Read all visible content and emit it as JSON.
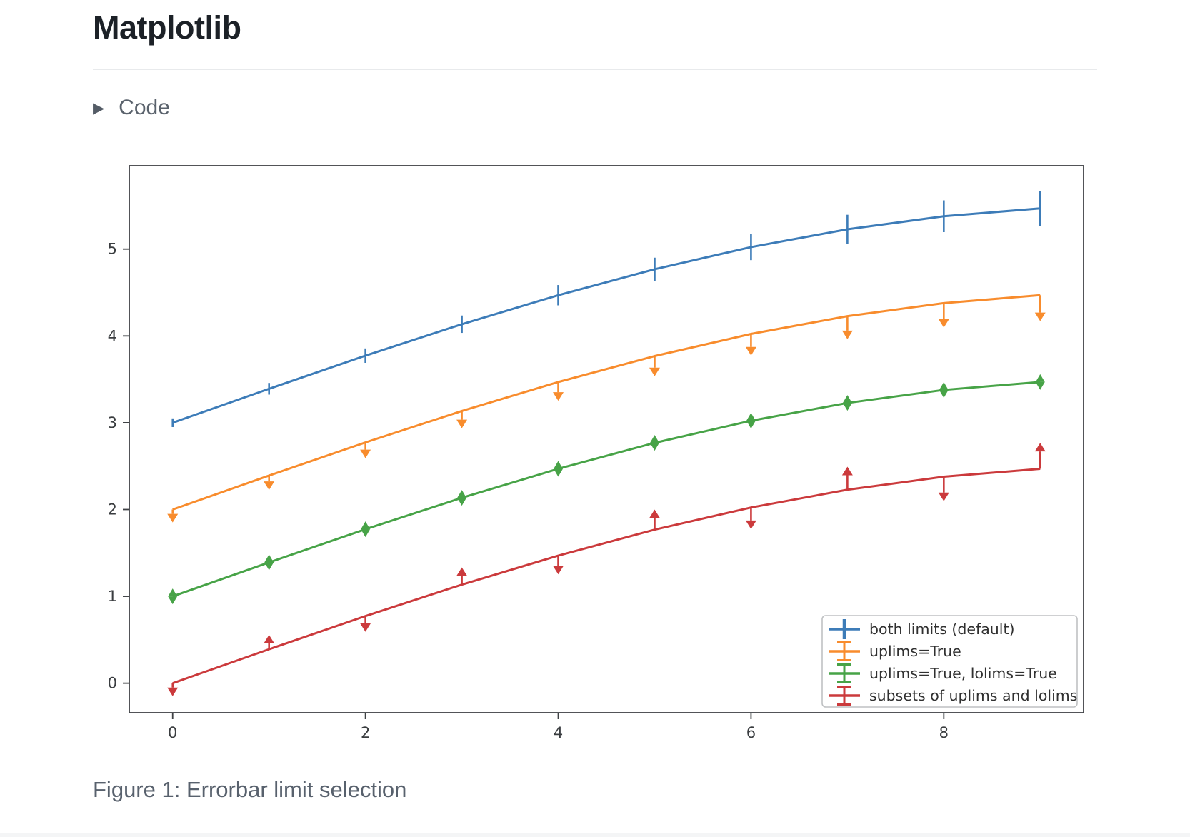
{
  "page": {
    "title": "Matplotlib",
    "code_toggle": {
      "icon": "triangle-right",
      "icon_char": "▶",
      "label": "Code"
    },
    "caption": "Figure 1: Errorbar limit selection"
  },
  "chart_data": {
    "type": "line",
    "title": "",
    "xlabel": "",
    "ylabel": "",
    "grid": false,
    "legend_position": "lower right",
    "axes": {
      "xlim": [
        -0.45,
        9.45
      ],
      "ylim": [
        -0.34,
        5.96
      ],
      "xticks": [
        0,
        2,
        4,
        6,
        8
      ],
      "yticks": [
        0,
        1,
        2,
        3,
        4,
        5
      ],
      "spine_color": "#3f4245",
      "tick_label_color": "#3a3d40"
    },
    "x": [
      0,
      1,
      2,
      3,
      4,
      5,
      6,
      7,
      8,
      9
    ],
    "yerr": [
      0.05,
      0.067,
      0.083,
      0.1,
      0.117,
      0.133,
      0.15,
      0.167,
      0.183,
      0.2
    ],
    "legend_style": {
      "box_fill": "#ffffff",
      "box_border": "#bfc1c3",
      "text_color": "#303030"
    },
    "series": [
      {
        "name": "both limits (default)",
        "color": "#3d7cb8",
        "limit_style": "bars",
        "values": [
          3.0,
          3.391,
          3.773,
          4.135,
          4.469,
          4.768,
          5.023,
          5.228,
          5.378,
          5.469
        ]
      },
      {
        "name": "uplims=True",
        "color": "#f88c2d",
        "limit_style": "uplims",
        "values": [
          2.0,
          2.391,
          2.773,
          3.135,
          3.469,
          3.768,
          4.023,
          4.228,
          4.378,
          4.469
        ]
      },
      {
        "name": "uplims=True, lolims=True",
        "color": "#47a347",
        "limit_style": "uplims_lolims",
        "values": [
          1.0,
          1.391,
          1.773,
          2.135,
          2.469,
          2.768,
          3.023,
          3.228,
          3.378,
          3.469
        ]
      },
      {
        "name": "subsets of uplims and lolims",
        "color": "#cb3a3c",
        "limit_style": "subsets",
        "uplims": [
          true,
          false,
          true,
          false,
          true,
          false,
          true,
          false,
          true,
          false
        ],
        "lolims": [
          false,
          true,
          false,
          true,
          false,
          true,
          false,
          true,
          false,
          true
        ],
        "values": [
          0.0,
          0.391,
          0.773,
          1.135,
          1.469,
          1.768,
          2.023,
          2.228,
          2.378,
          2.469
        ]
      }
    ]
  }
}
